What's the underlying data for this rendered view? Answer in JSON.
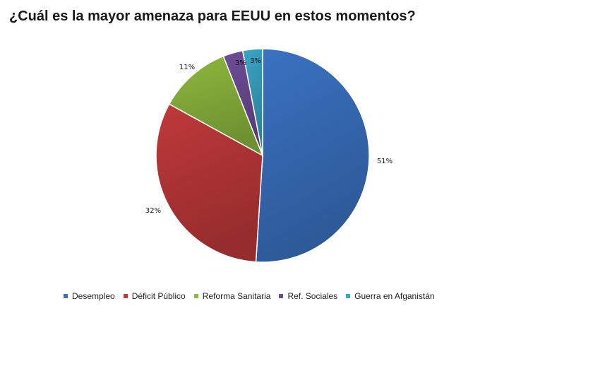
{
  "chart_data": {
    "type": "pie",
    "title": "¿Cuál es la mayor amenaza para EEUU en estos momentos?",
    "categories": [
      "Desempleo",
      "Déficit Público",
      "Reforma Sanitaria",
      "Ref. Sociales",
      "Guerra en Afganistán"
    ],
    "values": [
      51,
      32,
      11,
      3,
      3
    ],
    "value_labels": [
      "51%",
      "32%",
      "11%",
      "3%",
      "3%"
    ],
    "colors": [
      "#3a72c2",
      "#c0393a",
      "#8db83d",
      "#6e4c98",
      "#38a6c7"
    ],
    "start": "top, clockwise",
    "legend": "bottom"
  }
}
